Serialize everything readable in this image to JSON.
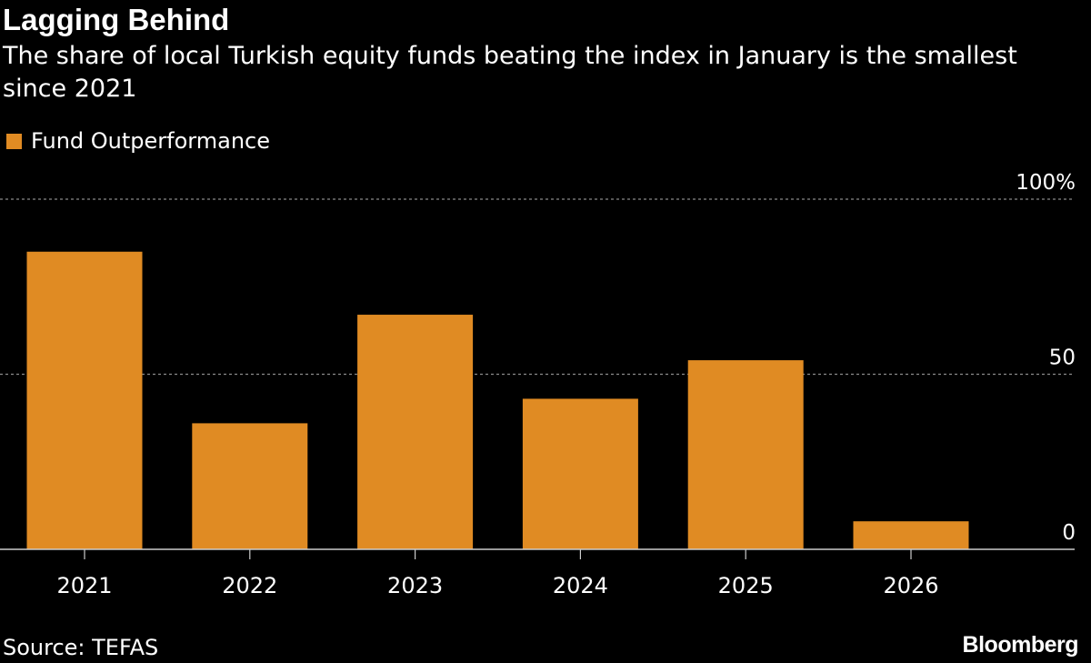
{
  "header": {
    "title": "Lagging Behind",
    "subtitle": "The share of local Turkish equity funds beating the index in January is the smallest since 2021"
  },
  "footer": {
    "source": "Source: TEFAS",
    "brand": "Bloomberg"
  },
  "colors": {
    "background": "#000000",
    "bar": "#e08b23",
    "gridline": "#8a8a8a",
    "axis": "#cccccc",
    "text": "#ffffff"
  },
  "chart_data": {
    "type": "bar",
    "title": "Lagging Behind",
    "subtitle": "The share of local Turkish equity funds beating the index in January is the smallest since 2021",
    "categories": [
      "2021",
      "2022",
      "2023",
      "2024",
      "2025",
      "2026"
    ],
    "series": [
      {
        "name": "Fund Outperformance",
        "values": [
          85,
          36,
          67,
          43,
          54,
          8
        ]
      }
    ],
    "xlabel": "",
    "ylabel": "",
    "ylim": [
      0,
      100
    ],
    "yticks": [
      {
        "value": 0,
        "label": "0"
      },
      {
        "value": 50,
        "label": "50"
      },
      {
        "value": 100,
        "label": "100%"
      }
    ],
    "grid": true,
    "legend": "top-left"
  }
}
